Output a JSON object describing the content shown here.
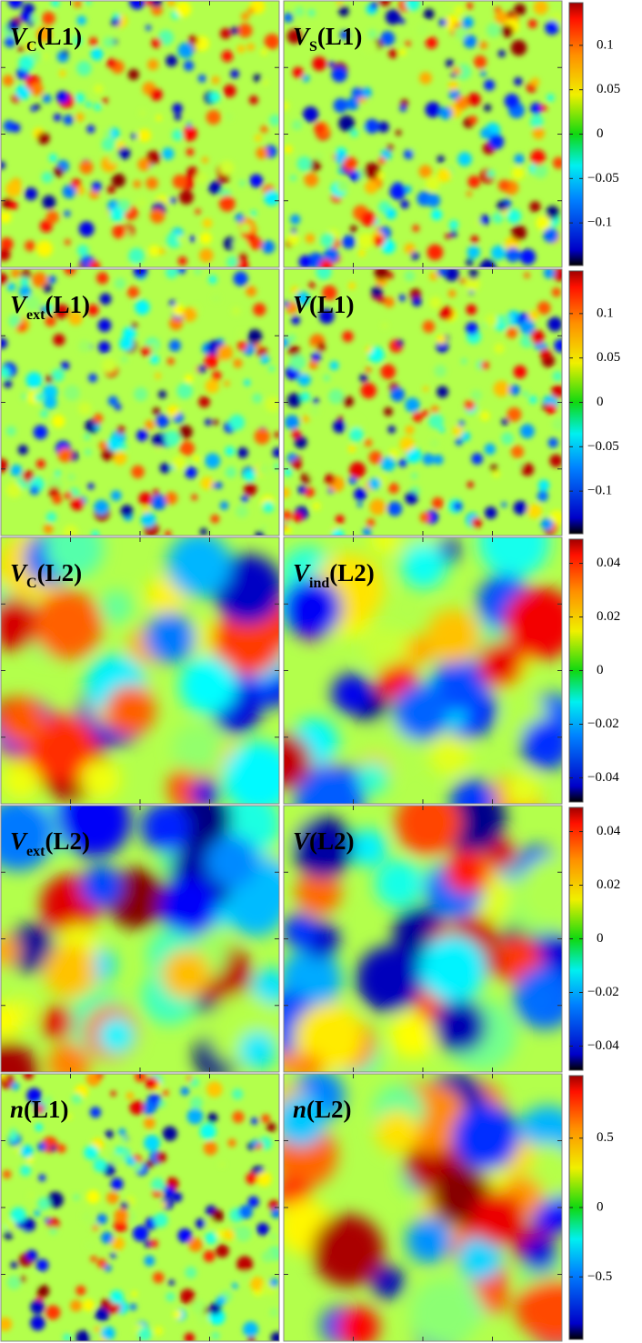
{
  "chart_data": [
    {
      "type": "heatmap",
      "panels": [
        {
          "label": {
            "main": "V",
            "sub": "C",
            "tail": "(L1)"
          }
        },
        {
          "label": {
            "main": "V",
            "sub": "S",
            "tail": "(L1)"
          }
        }
      ],
      "colorbar": {
        "ylim": [
          -0.148,
          0.148
        ],
        "yticks": [
          0.1,
          0.05,
          0,
          {
            "value": -0.05,
            "label": "−0.05"
          },
          {
            "value": -0.1,
            "label": "−0.1"
          }
        ]
      }
    },
    {
      "type": "heatmap",
      "panels": [
        {
          "label": {
            "main": "V",
            "sub": "ext",
            "tail": "(L1)"
          }
        },
        {
          "label": {
            "main": "V",
            "tail": "(L1)"
          }
        }
      ],
      "colorbar": {
        "ylim": [
          -0.148,
          0.148
        ],
        "yticks": [
          0.1,
          0.05,
          0,
          {
            "value": -0.05,
            "label": "−0.05"
          },
          {
            "value": -0.1,
            "label": "−0.1"
          }
        ]
      }
    },
    {
      "type": "heatmap",
      "panels": [
        {
          "label": {
            "main": "V",
            "sub": "C",
            "tail": "(L2)"
          }
        },
        {
          "label": {
            "main": "V",
            "sub": "ind",
            "tail": "(L2)"
          }
        }
      ],
      "colorbar": {
        "ylim": [
          -0.049,
          0.049
        ],
        "yticks": [
          0.04,
          0.02,
          0,
          {
            "value": -0.02,
            "label": "−0.02"
          },
          {
            "value": -0.04,
            "label": "−0.04"
          }
        ]
      }
    },
    {
      "type": "heatmap",
      "panels": [
        {
          "label": {
            "main": "V",
            "sub": "ext",
            "tail": "(L2)"
          }
        },
        {
          "label": {
            "main": "V",
            "tail": "(L2)"
          }
        }
      ],
      "colorbar": {
        "ylim": [
          -0.049,
          0.049
        ],
        "yticks": [
          0.04,
          0.02,
          0,
          {
            "value": -0.02,
            "label": "−0.02"
          },
          {
            "value": -0.04,
            "label": "−0.04"
          }
        ]
      }
    },
    {
      "type": "heatmap",
      "panels": [
        {
          "label": {
            "main": "n",
            "tail": "(L1)"
          }
        },
        {
          "label": {
            "main": "n",
            "tail": "(L2)"
          }
        }
      ],
      "colorbar": {
        "ylim": [
          -0.95,
          0.95
        ],
        "yticks": [
          0.5,
          0,
          {
            "value": -0.5,
            "label": "−0.5"
          }
        ]
      }
    }
  ]
}
